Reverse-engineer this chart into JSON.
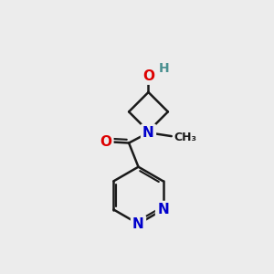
{
  "bg_color": "#ececec",
  "bond_color": "#1a1a1a",
  "bond_width": 1.8,
  "atom_colors": {
    "O": "#dd0000",
    "N": "#0000cc",
    "H": "#4a9090",
    "C": "#1a1a1a"
  },
  "font_size_atoms": 11,
  "font_size_h": 10
}
